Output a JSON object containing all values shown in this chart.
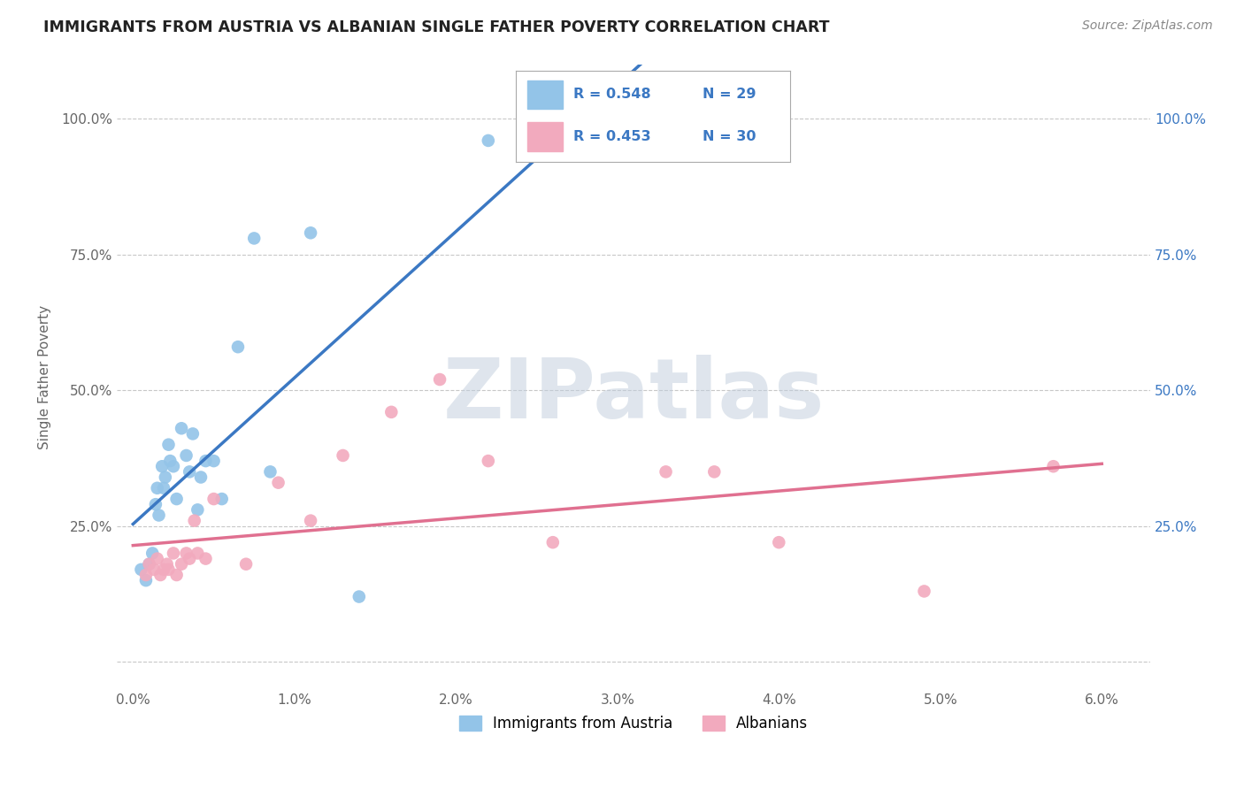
{
  "title": "IMMIGRANTS FROM AUSTRIA VS ALBANIAN SINGLE FATHER POVERTY CORRELATION CHART",
  "source": "Source: ZipAtlas.com",
  "ylabel": "Single Father Poverty",
  "x_tick_labels": [
    "0.0%",
    "1.0%",
    "2.0%",
    "3.0%",
    "4.0%",
    "5.0%",
    "6.0%"
  ],
  "y_tick_labels": [
    "",
    "25.0%",
    "50.0%",
    "75.0%",
    "100.0%"
  ],
  "y_ticks_right_labels": [
    "",
    "25.0%",
    "50.0%",
    "75.0%",
    "100.0%"
  ],
  "xlim": [
    -0.1,
    6.3
  ],
  "ylim": [
    -5,
    110
  ],
  "y_ticks": [
    0,
    25,
    50,
    75,
    100
  ],
  "blue_color": "#93C4E8",
  "pink_color": "#F2AABE",
  "blue_line_color": "#3B78C3",
  "pink_line_color": "#E07090",
  "grid_color": "#C8C8C8",
  "background_color": "#FFFFFF",
  "watermark": "ZIPatlas",
  "legend_R1": "R = 0.548",
  "legend_N1": "N = 29",
  "legend_R2": "R = 0.453",
  "legend_N2": "N = 30",
  "legend_label1": "Immigrants from Austria",
  "legend_label2": "Albanians",
  "blue_scatter_x": [
    0.05,
    0.08,
    0.1,
    0.12,
    0.14,
    0.15,
    0.16,
    0.18,
    0.19,
    0.2,
    0.22,
    0.23,
    0.25,
    0.27,
    0.3,
    0.33,
    0.35,
    0.37,
    0.4,
    0.42,
    0.45,
    0.5,
    0.55,
    0.65,
    0.75,
    0.85,
    1.1,
    1.4,
    2.2
  ],
  "blue_scatter_y": [
    17,
    15,
    18,
    20,
    29,
    32,
    27,
    36,
    32,
    34,
    40,
    37,
    36,
    30,
    43,
    38,
    35,
    42,
    28,
    34,
    37,
    37,
    30,
    58,
    78,
    35,
    79,
    12,
    96
  ],
  "pink_scatter_x": [
    0.08,
    0.1,
    0.13,
    0.15,
    0.17,
    0.19,
    0.21,
    0.22,
    0.25,
    0.27,
    0.3,
    0.33,
    0.35,
    0.38,
    0.4,
    0.45,
    0.5,
    0.7,
    0.9,
    1.1,
    1.3,
    1.6,
    1.9,
    2.2,
    2.6,
    3.3,
    3.6,
    4.0,
    4.9,
    5.7
  ],
  "pink_scatter_y": [
    16,
    18,
    17,
    19,
    16,
    17,
    18,
    17,
    20,
    16,
    18,
    20,
    19,
    26,
    20,
    19,
    30,
    18,
    33,
    26,
    38,
    46,
    52,
    37,
    22,
    35,
    35,
    22,
    13,
    36
  ]
}
